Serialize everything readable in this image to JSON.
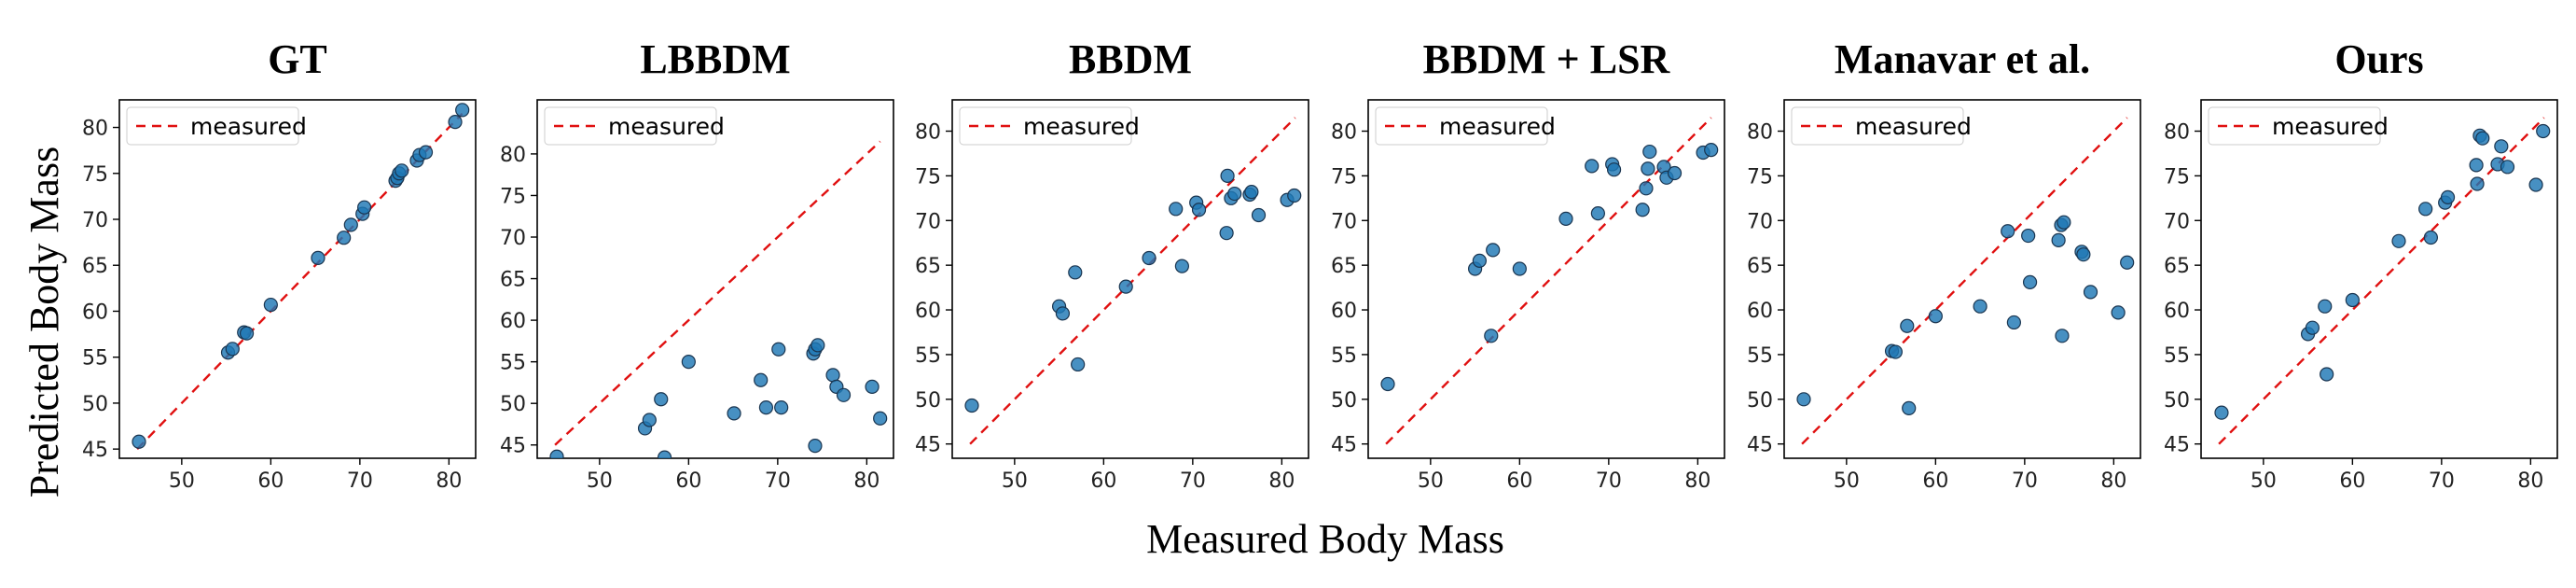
{
  "figure": {
    "xlabel": "Measured Body Mass",
    "ylabel": "Predicted Body Mass"
  },
  "chart_data": [
    {
      "type": "scatter",
      "title": "GT",
      "xlabel": "Measured Body Mass",
      "ylabel": "Predicted Body Mass",
      "xlim": [
        43,
        83
      ],
      "ylim": [
        44,
        83
      ],
      "xticks": [
        50,
        60,
        70,
        80
      ],
      "yticks": [
        45,
        50,
        55,
        60,
        65,
        70,
        75,
        80
      ],
      "legend": {
        "label": "measured",
        "placement": "top-left"
      },
      "reference_line": {
        "style": "dashed",
        "color": "#e01010",
        "from": [
          45,
          45
        ],
        "to": [
          81.5,
          81.5
        ]
      },
      "points": [
        [
          45.2,
          45.8
        ],
        [
          55.2,
          55.5
        ],
        [
          55.7,
          55.9
        ],
        [
          57,
          57.7
        ],
        [
          57.3,
          57.6
        ],
        [
          60,
          60.7
        ],
        [
          65.3,
          65.8
        ],
        [
          68.2,
          68
        ],
        [
          69,
          69.4
        ],
        [
          70.3,
          70.6
        ],
        [
          70.5,
          71.3
        ],
        [
          74,
          74.2
        ],
        [
          74.2,
          74.5
        ],
        [
          74.4,
          75
        ],
        [
          74.7,
          75.3
        ],
        [
          76.4,
          76.4
        ],
        [
          76.7,
          77
        ],
        [
          77.4,
          77.3
        ],
        [
          80.7,
          80.6
        ],
        [
          81.5,
          81.9
        ]
      ]
    },
    {
      "type": "scatter",
      "title": "LBBDM",
      "xlabel": "Measured Body Mass",
      "ylabel": "Predicted Body Mass",
      "xlim": [
        43,
        83
      ],
      "ylim": [
        43.4,
        86.5
      ],
      "xticks": [
        50,
        60,
        70,
        80
      ],
      "yticks": [
        45,
        50,
        55,
        60,
        65,
        70,
        75,
        80
      ],
      "legend": {
        "label": "measured",
        "placement": "top-left"
      },
      "reference_line": {
        "style": "dashed",
        "color": "#e01010",
        "from": [
          45,
          45
        ],
        "to": [
          81.5,
          81.5
        ]
      },
      "points": [
        [
          45.2,
          43.6
        ],
        [
          55.1,
          47
        ],
        [
          55.6,
          48
        ],
        [
          56.9,
          50.5
        ],
        [
          57.3,
          43.5
        ],
        [
          60,
          55
        ],
        [
          65.1,
          48.8
        ],
        [
          68.1,
          52.8
        ],
        [
          68.7,
          49.5
        ],
        [
          70.1,
          56.5
        ],
        [
          70.4,
          49.5
        ],
        [
          74,
          56
        ],
        [
          74.2,
          56.5
        ],
        [
          74.5,
          57
        ],
        [
          74.2,
          44.9
        ],
        [
          76.2,
          53.4
        ],
        [
          76.6,
          52
        ],
        [
          77.4,
          51
        ],
        [
          80.6,
          52
        ],
        [
          81.5,
          48.2
        ]
      ]
    },
    {
      "type": "scatter",
      "title": "BBDM",
      "xlabel": "Measured Body Mass",
      "ylabel": "Predicted Body Mass",
      "xlim": [
        43,
        83
      ],
      "ylim": [
        43.4,
        83.5
      ],
      "xticks": [
        50,
        60,
        70,
        80
      ],
      "yticks": [
        45,
        50,
        55,
        60,
        65,
        70,
        75,
        80
      ],
      "legend": {
        "label": "measured",
        "placement": "top-left"
      },
      "reference_line": {
        "style": "dashed",
        "color": "#e01010",
        "from": [
          45,
          45
        ],
        "to": [
          81.5,
          81.5
        ]
      },
      "points": [
        [
          45.2,
          49.3
        ],
        [
          55,
          60.4
        ],
        [
          55.4,
          59.6
        ],
        [
          56.8,
          64.2
        ],
        [
          57.1,
          53.9
        ],
        [
          62.5,
          62.6
        ],
        [
          65.1,
          65.8
        ],
        [
          68.1,
          71.3
        ],
        [
          68.8,
          64.9
        ],
        [
          70.4,
          72
        ],
        [
          70.7,
          71.2
        ],
        [
          73.8,
          68.6
        ],
        [
          73.9,
          75
        ],
        [
          74.3,
          72.5
        ],
        [
          74.7,
          73
        ],
        [
          76.4,
          72.9
        ],
        [
          76.6,
          73.2
        ],
        [
          77.4,
          70.6
        ],
        [
          80.6,
          72.3
        ],
        [
          81.4,
          72.8
        ]
      ]
    },
    {
      "type": "scatter",
      "title": "BBDM + LSR",
      "xlabel": "Measured Body Mass",
      "ylabel": "Predicted Body Mass",
      "xlim": [
        43,
        83
      ],
      "ylim": [
        43.4,
        83.5
      ],
      "xticks": [
        50,
        60,
        70,
        80
      ],
      "yticks": [
        45,
        50,
        55,
        60,
        65,
        70,
        75,
        80
      ],
      "legend": {
        "label": "measured",
        "placement": "top-left"
      },
      "reference_line": {
        "style": "dashed",
        "color": "#e01010",
        "from": [
          45,
          45
        ],
        "to": [
          81.5,
          81.5
        ]
      },
      "points": [
        [
          45.2,
          51.7
        ],
        [
          55,
          64.6
        ],
        [
          55.5,
          65.5
        ],
        [
          56.8,
          57.1
        ],
        [
          57,
          66.7
        ],
        [
          60,
          64.6
        ],
        [
          65.2,
          70.2
        ],
        [
          68.1,
          76.1
        ],
        [
          68.8,
          70.8
        ],
        [
          70.4,
          76.3
        ],
        [
          70.6,
          75.7
        ],
        [
          73.8,
          71.2
        ],
        [
          74.2,
          73.6
        ],
        [
          74.4,
          75.8
        ],
        [
          74.6,
          77.7
        ],
        [
          76.2,
          76
        ],
        [
          76.5,
          74.8
        ],
        [
          77.4,
          75.3
        ],
        [
          80.6,
          77.6
        ],
        [
          81.5,
          77.9
        ]
      ]
    },
    {
      "type": "scatter",
      "title": "Manavar et al.",
      "xlabel": "Measured Body Mass",
      "ylabel": "Predicted Body Mass",
      "xlim": [
        43,
        83
      ],
      "ylim": [
        43.4,
        83.5
      ],
      "xticks": [
        50,
        60,
        70,
        80
      ],
      "yticks": [
        45,
        50,
        55,
        60,
        65,
        70,
        75,
        80
      ],
      "legend": {
        "label": "measured",
        "placement": "top-left"
      },
      "reference_line": {
        "style": "dashed",
        "color": "#e01010",
        "from": [
          45,
          45
        ],
        "to": [
          81.5,
          81.5
        ]
      },
      "points": [
        [
          45.2,
          50
        ],
        [
          55.1,
          55.4
        ],
        [
          55.5,
          55.3
        ],
        [
          56.8,
          58.2
        ],
        [
          57,
          49
        ],
        [
          60,
          59.3
        ],
        [
          65,
          60.4
        ],
        [
          68.1,
          68.8
        ],
        [
          68.8,
          58.6
        ],
        [
          70.4,
          68.3
        ],
        [
          70.6,
          63.1
        ],
        [
          73.8,
          67.8
        ],
        [
          74.1,
          69.5
        ],
        [
          74.4,
          69.8
        ],
        [
          74.2,
          57.1
        ],
        [
          76.4,
          66.5
        ],
        [
          76.6,
          66.2
        ],
        [
          77.4,
          62
        ],
        [
          80.5,
          59.7
        ],
        [
          81.5,
          65.3
        ]
      ]
    },
    {
      "type": "scatter",
      "title": "Ours",
      "xlabel": "Measured Body Mass",
      "ylabel": "Predicted Body Mass",
      "xlim": [
        43,
        83
      ],
      "ylim": [
        43.4,
        83.5
      ],
      "xticks": [
        50,
        60,
        70,
        80
      ],
      "yticks": [
        45,
        50,
        55,
        60,
        65,
        70,
        75,
        80
      ],
      "legend": {
        "label": "measured",
        "placement": "top-left"
      },
      "reference_line": {
        "style": "dashed",
        "color": "#e01010",
        "from": [
          45,
          45
        ],
        "to": [
          81.5,
          81.5
        ]
      },
      "points": [
        [
          45.3,
          48.5
        ],
        [
          55,
          57.3
        ],
        [
          55.5,
          58
        ],
        [
          56.9,
          60.4
        ],
        [
          57.1,
          52.8
        ],
        [
          60,
          61.1
        ],
        [
          65.2,
          67.7
        ],
        [
          68.2,
          71.3
        ],
        [
          68.8,
          68.1
        ],
        [
          70.4,
          72
        ],
        [
          70.7,
          72.6
        ],
        [
          73.9,
          76.2
        ],
        [
          74,
          74.1
        ],
        [
          74.3,
          79.5
        ],
        [
          74.6,
          79.2
        ],
        [
          76.3,
          76.3
        ],
        [
          76.7,
          78.3
        ],
        [
          77.4,
          76
        ],
        [
          80.6,
          74
        ],
        [
          81.4,
          80
        ]
      ]
    }
  ]
}
